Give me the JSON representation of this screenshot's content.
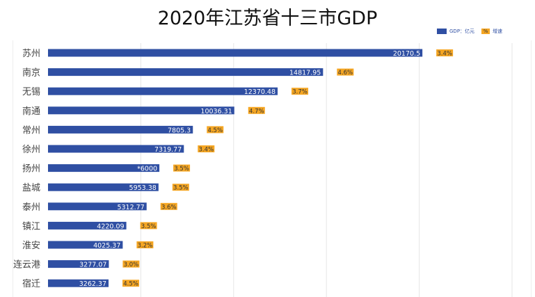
{
  "chart_data": {
    "type": "bar",
    "orientation": "horizontal",
    "title": "2020年江苏省十三市GDP",
    "categories": [
      "苏州",
      "南京",
      "无锡",
      "南通",
      "常州",
      "徐州",
      "扬州",
      "盐城",
      "泰州",
      "镇江",
      "淮安",
      "连云港",
      "宿迁"
    ],
    "series": [
      {
        "name": "GDP：亿元",
        "color": "#2f4fa3",
        "values": [
          20170.5,
          14817.95,
          12370.48,
          10036.31,
          7805.3,
          7319.77,
          6000,
          5953.38,
          5312.77,
          4220.09,
          4025.37,
          3277.07,
          3262.37
        ],
        "labels": [
          "20170.5",
          "14817.95",
          "12370.48",
          "10036.31",
          "7805.3",
          "7319.77",
          "*6000",
          "5953.38",
          "5312.77",
          "4220.09",
          "4025.37",
          "3277.07",
          "3262.37"
        ]
      },
      {
        "name": "增速",
        "color": "#f5a623",
        "legend_symbol": "%",
        "values": [
          3.4,
          4.6,
          3.7,
          4.7,
          4.5,
          3.4,
          3.5,
          3.5,
          3.6,
          3.5,
          3.2,
          3.0,
          4.5
        ],
        "labels": [
          "3.4%",
          "4.6%",
          "3.7%",
          "4.7%",
          "4.5%",
          "3.4%",
          "3.5%",
          "3.5%",
          "3.6%",
          "3.5%",
          "3.2%",
          "3.0%",
          "4.5%"
        ]
      }
    ],
    "xlim": [
      0,
      25000
    ],
    "grid": true,
    "legend_position": "top-right"
  }
}
